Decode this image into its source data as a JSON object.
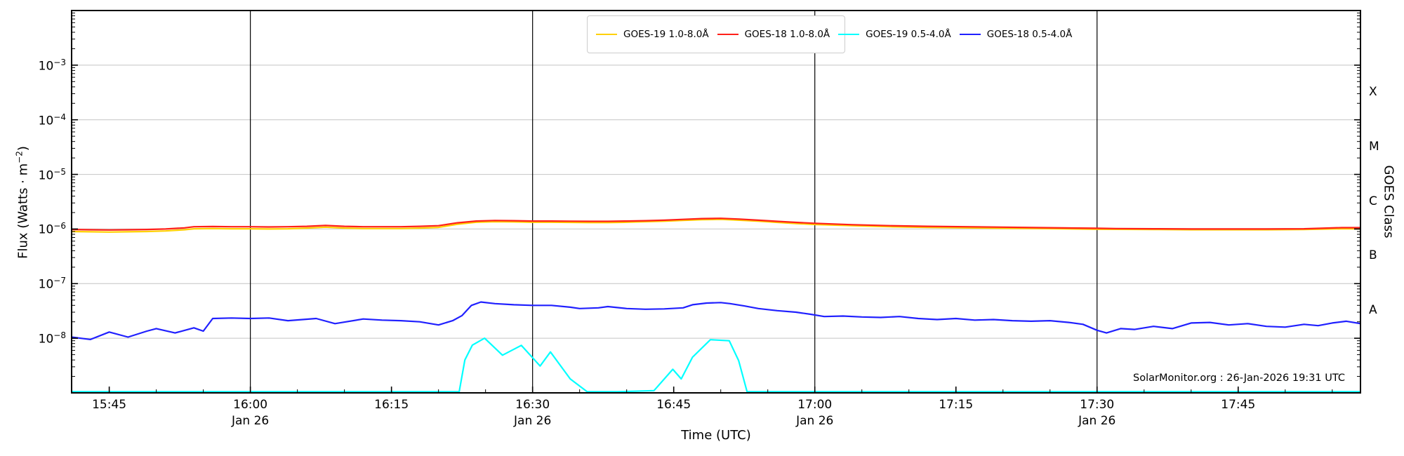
{
  "watermark": "SolarMonitor.org : 26-Jan-2026 19:31 UTC",
  "axes": {
    "xlabel": "Time (UTC)",
    "ylabel_left": {
      "prefix": "Flux (Watts · m",
      "sup": "−2",
      "suffix": ")"
    },
    "ylabel_right": "GOES Class",
    "start_time": "15:41",
    "x_range_minutes": [
      0,
      137
    ],
    "x_ticks": [
      {
        "label": "15:45",
        "minutes": 4,
        "date": "",
        "line": false
      },
      {
        "label": "16:00",
        "minutes": 19,
        "date": "Jan 26",
        "line": true
      },
      {
        "label": "16:15",
        "minutes": 34,
        "date": "",
        "line": false
      },
      {
        "label": "16:30",
        "minutes": 49,
        "date": "Jan 26",
        "line": true
      },
      {
        "label": "16:45",
        "minutes": 64,
        "date": "",
        "line": false
      },
      {
        "label": "17:00",
        "minutes": 79,
        "date": "Jan 26",
        "line": true
      },
      {
        "label": "17:15",
        "minutes": 94,
        "date": "",
        "line": false
      },
      {
        "label": "17:30",
        "minutes": 109,
        "date": "Jan 26",
        "line": true
      },
      {
        "label": "17:45",
        "minutes": 124,
        "date": "",
        "line": false
      }
    ],
    "x_minor_step_minutes": 5,
    "y_major_exponents": [
      -3,
      -4,
      -5,
      -6,
      -7,
      -8
    ],
    "y_range_exponents": [
      -9,
      -2
    ],
    "grid_on": true,
    "class_labels": [
      {
        "label": "X",
        "exp": -3.5
      },
      {
        "label": "M",
        "exp": -4.5
      },
      {
        "label": "C",
        "exp": -5.5
      },
      {
        "label": "B",
        "exp": -6.5
      },
      {
        "label": "A",
        "exp": -7.5
      }
    ]
  },
  "colors": {
    "goes19_long": "#ffd000",
    "goes18_long": "#ff2019",
    "goes19_short": "#00ffff",
    "goes18_short": "#2020ff",
    "gridline": "#c4c4c4",
    "dayline": "#000000",
    "spine": "#000000"
  },
  "legend": {
    "items": [
      {
        "label": "GOES-19 1.0-8.0Å",
        "series": "goes19_long"
      },
      {
        "label": "GOES-18 1.0-8.0Å",
        "series": "goes18_long"
      },
      {
        "label": "GOES-19 0.5-4.0Å",
        "series": "goes19_short"
      },
      {
        "label": "GOES-18 0.5-4.0Å",
        "series": "goes18_short"
      }
    ]
  },
  "chart_data": {
    "type": "line",
    "title": "",
    "xlabel": "Time (UTC)",
    "ylabel": "Flux (Watts m^-2)",
    "x_unit": "minutes after 15:41 UTC on 26-Jan-2026",
    "ylim": [
      1e-09,
      0.01
    ],
    "yscale": "log",
    "legend_position": "top-center",
    "series": [
      {
        "name": "GOES-19 1.0-8.0Å",
        "color_key": "goes19_long",
        "x": [
          0,
          2,
          4,
          6,
          8,
          10,
          12,
          13,
          15,
          17,
          19,
          21,
          23,
          25,
          27,
          29,
          31,
          33,
          35,
          37,
          39,
          41,
          43,
          45,
          47,
          49,
          51,
          53,
          55,
          57,
          59,
          61,
          63,
          65,
          67,
          69,
          71,
          73,
          75,
          77,
          79,
          83,
          87,
          91,
          95,
          99,
          103,
          107,
          109,
          111,
          115,
          119,
          123,
          127,
          131,
          135,
          137
        ],
        "y": [
          9e-07,
          8.9e-07,
          8.8e-07,
          8.9e-07,
          9e-07,
          9.2e-07,
          9.7e-07,
          1.01e-06,
          1.02e-06,
          1.01e-06,
          1.01e-06,
          1e-06,
          1.01e-06,
          1.04e-06,
          1.08e-06,
          1.04e-06,
          1.02e-06,
          1.02e-06,
          1.02e-06,
          1.04e-06,
          1.07e-06,
          1.22e-06,
          1.33e-06,
          1.36e-06,
          1.35e-06,
          1.33e-06,
          1.33e-06,
          1.32e-06,
          1.31e-06,
          1.31e-06,
          1.33e-06,
          1.36e-06,
          1.39e-06,
          1.44e-06,
          1.48e-06,
          1.5e-06,
          1.45e-06,
          1.39e-06,
          1.32e-06,
          1.26e-06,
          1.21e-06,
          1.15e-06,
          1.1e-06,
          1.07e-06,
          1.05e-06,
          1.03e-06,
          1.02e-06,
          1e-06,
          9.9e-07,
          9.85e-07,
          9.8e-07,
          9.7e-07,
          9.7e-07,
          9.7e-07,
          9.8e-07,
          1.01e-06,
          1.01e-06
        ]
      },
      {
        "name": "GOES-18 1.0-8.0Å",
        "color_key": "goes18_long",
        "x": [
          0,
          2,
          4,
          6,
          8,
          10,
          12,
          13,
          15,
          17,
          19,
          21,
          23,
          25,
          27,
          29,
          31,
          33,
          35,
          37,
          39,
          41,
          43,
          45,
          47,
          49,
          51,
          53,
          55,
          57,
          59,
          61,
          63,
          65,
          67,
          69,
          71,
          73,
          75,
          77,
          79,
          83,
          87,
          91,
          95,
          99,
          103,
          107,
          109,
          111,
          115,
          119,
          123,
          127,
          131,
          135,
          137
        ],
        "y": [
          9.8e-07,
          9.7e-07,
          9.6e-07,
          9.7e-07,
          9.8e-07,
          1e-06,
          1.05e-06,
          1.1e-06,
          1.11e-06,
          1.1e-06,
          1.1e-06,
          1.09e-06,
          1.1e-06,
          1.12e-06,
          1.16e-06,
          1.12e-06,
          1.1e-06,
          1.1e-06,
          1.1e-06,
          1.12e-06,
          1.15e-06,
          1.3e-06,
          1.4e-06,
          1.43e-06,
          1.42e-06,
          1.4e-06,
          1.4e-06,
          1.39e-06,
          1.38e-06,
          1.38e-06,
          1.4e-06,
          1.42e-06,
          1.45e-06,
          1.5e-06,
          1.55e-06,
          1.57e-06,
          1.52e-06,
          1.45e-06,
          1.38e-06,
          1.32e-06,
          1.27e-06,
          1.2e-06,
          1.15e-06,
          1.12e-06,
          1.1e-06,
          1.08e-06,
          1.06e-06,
          1.04e-06,
          1.03e-06,
          1.02e-06,
          1.01e-06,
          1e-06,
          1e-06,
          1e-06,
          1.01e-06,
          1.06e-06,
          1.06e-06
        ]
      },
      {
        "name": "GOES-19 0.5-4.0Å",
        "color_key": "goes19_short",
        "x": [
          0,
          20,
          38,
          41.2,
          41.8,
          42.6,
          43.9,
          45.8,
          47.8,
          49.8,
          50.9,
          53,
          54.8,
          58,
          61.9,
          63.9,
          64.8,
          66,
          67.9,
          69.9,
          70.9,
          71.8,
          75,
          90,
          110,
          130,
          137
        ],
        "y": [
          1.05e-09,
          1.05e-09,
          1.05e-09,
          1.05e-09,
          4e-09,
          7.5e-09,
          1e-08,
          4.9e-09,
          7.4e-09,
          3.1e-09,
          5.6e-09,
          1.8e-09,
          1.05e-09,
          1.05e-09,
          1.1e-09,
          2.7e-09,
          1.8e-09,
          4.5e-09,
          9.4e-09,
          9e-09,
          3.9e-09,
          1.05e-09,
          1.05e-09,
          1.05e-09,
          1.05e-09,
          1.05e-09,
          1.05e-09
        ]
      },
      {
        "name": "GOES-18 0.5-4.0Å",
        "color_key": "goes18_short",
        "x": [
          0,
          2,
          4,
          6,
          8,
          9,
          11,
          13,
          14,
          15,
          17,
          19,
          21,
          23,
          26,
          28,
          31,
          33,
          35,
          37,
          39,
          40.5,
          41.5,
          42.5,
          43.5,
          45,
          47,
          49,
          51,
          53,
          54,
          56,
          57,
          59,
          61,
          63,
          65,
          66,
          67.5,
          69,
          70,
          71.5,
          73,
          75,
          77,
          78.5,
          80,
          82,
          84,
          86,
          88,
          90,
          92,
          94,
          96,
          98,
          100,
          102,
          104,
          106,
          107.5,
          109,
          110,
          111.5,
          113,
          115,
          117,
          119,
          121,
          123,
          125,
          127,
          129,
          131,
          132.5,
          134,
          135.5,
          137
        ],
        "y": [
          1.05e-08,
          9.5e-09,
          1.3e-08,
          1.05e-08,
          1.35e-08,
          1.5e-08,
          1.25e-08,
          1.55e-08,
          1.35e-08,
          2.3e-08,
          2.35e-08,
          2.3e-08,
          2.35e-08,
          2.1e-08,
          2.3e-08,
          1.85e-08,
          2.25e-08,
          2.15e-08,
          2.1e-08,
          2e-08,
          1.75e-08,
          2.1e-08,
          2.6e-08,
          4e-08,
          4.6e-08,
          4.3e-08,
          4.1e-08,
          4e-08,
          4e-08,
          3.7e-08,
          3.5e-08,
          3.6e-08,
          3.8e-08,
          3.5e-08,
          3.4e-08,
          3.45e-08,
          3.6e-08,
          4.1e-08,
          4.4e-08,
          4.5e-08,
          4.3e-08,
          3.9e-08,
          3.5e-08,
          3.2e-08,
          3e-08,
          2.75e-08,
          2.5e-08,
          2.55e-08,
          2.45e-08,
          2.4e-08,
          2.5e-08,
          2.3e-08,
          2.2e-08,
          2.3e-08,
          2.15e-08,
          2.2e-08,
          2.1e-08,
          2.05e-08,
          2.1e-08,
          1.95e-08,
          1.8e-08,
          1.4e-08,
          1.25e-08,
          1.5e-08,
          1.45e-08,
          1.65e-08,
          1.5e-08,
          1.9e-08,
          1.95e-08,
          1.75e-08,
          1.85e-08,
          1.65e-08,
          1.6e-08,
          1.8e-08,
          1.7e-08,
          1.9e-08,
          2.05e-08,
          1.85e-08
        ]
      }
    ]
  }
}
